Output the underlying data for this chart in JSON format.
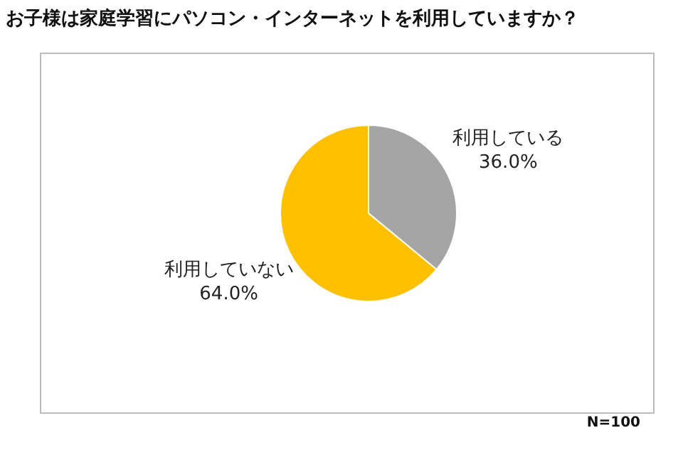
{
  "chart_data": {
    "type": "pie",
    "title": "お子様は家庭学習にパソコン・インターネットを利用していますか？",
    "categories": [
      "利用している",
      "利用していない"
    ],
    "values": [
      36.0,
      64.0
    ],
    "colors": [
      "#a5a5a5",
      "#ffc000"
    ],
    "value_labels": [
      "36.0%",
      "64.0%"
    ],
    "annotations": [
      "N=100"
    ],
    "legend": false
  }
}
